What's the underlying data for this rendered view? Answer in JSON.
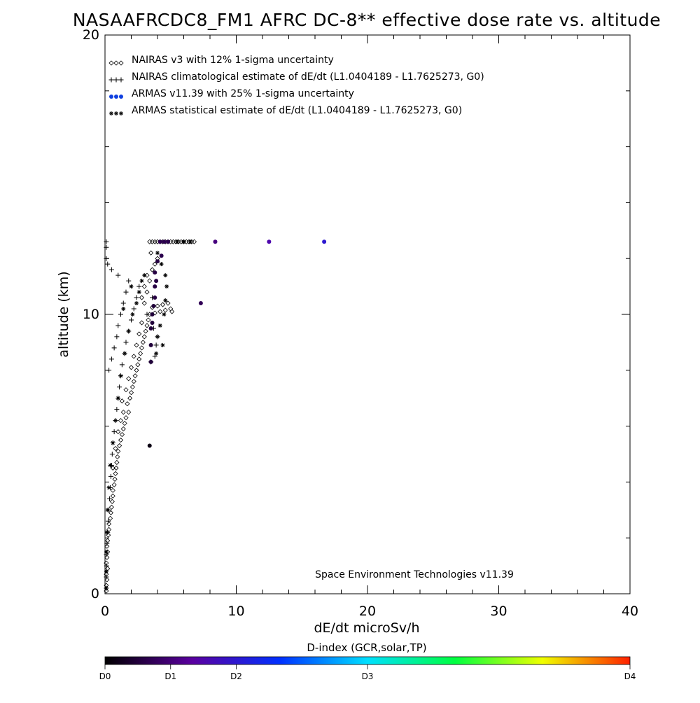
{
  "chart_data": {
    "type": "scatter",
    "title": "NASAAFRCDC8_FM1 AFRC DC-8** effective dose rate vs. altitude",
    "xlabel": "dE/dt microSv/h",
    "ylabel": "altitude (km)",
    "xlim": [
      0,
      40
    ],
    "ylim": [
      0,
      20
    ],
    "x_ticks": [
      "0",
      "10",
      "20",
      "30",
      "40"
    ],
    "y_ticks": [
      "0",
      "10",
      "20"
    ],
    "grid": false,
    "legend_position": "top-left",
    "credit": "Space Environment Technologies v11.39",
    "colorbar": {
      "title": "D-index (GCR,solar,TP)",
      "ticks": [
        {
          "label": "D0",
          "value": 0.0
        },
        {
          "label": "D1",
          "value": 0.125
        },
        {
          "label": "D2",
          "value": 0.25
        },
        {
          "label": "D3",
          "value": 0.5
        },
        {
          "label": "D4",
          "value": 1.0
        }
      ],
      "colors": [
        "#000000",
        "#5a00a0",
        "#0030ff",
        "#00e0ff",
        "#00ff40",
        "#f0ff00",
        "#ff2000"
      ]
    },
    "series": [
      {
        "name": "NAIRAS v3 with 12% 1-sigma uncertainty",
        "marker": "diamond",
        "color": "#000000",
        "points": [
          [
            0.1,
            0.1
          ],
          [
            0.1,
            0.3
          ],
          [
            0.15,
            0.5
          ],
          [
            0.1,
            0.7
          ],
          [
            0.2,
            0.9
          ],
          [
            0.1,
            1.1
          ],
          [
            0.15,
            1.3
          ],
          [
            0.2,
            1.5
          ],
          [
            0.15,
            1.7
          ],
          [
            0.2,
            1.9
          ],
          [
            0.25,
            2.1
          ],
          [
            0.3,
            2.3
          ],
          [
            0.3,
            2.5
          ],
          [
            0.4,
            2.7
          ],
          [
            0.45,
            2.9
          ],
          [
            0.5,
            3.1
          ],
          [
            0.55,
            3.3
          ],
          [
            0.6,
            3.5
          ],
          [
            0.6,
            3.7
          ],
          [
            0.7,
            3.9
          ],
          [
            0.75,
            4.1
          ],
          [
            0.8,
            4.3
          ],
          [
            0.85,
            4.5
          ],
          [
            0.9,
            4.7
          ],
          [
            0.95,
            4.9
          ],
          [
            0.6,
            4.5
          ],
          [
            1.0,
            5.1
          ],
          [
            1.1,
            5.3
          ],
          [
            0.8,
            5.2
          ],
          [
            1.2,
            5.5
          ],
          [
            1.3,
            5.7
          ],
          [
            1.0,
            5.8
          ],
          [
            1.4,
            5.9
          ],
          [
            1.5,
            6.1
          ],
          [
            1.2,
            6.2
          ],
          [
            1.6,
            6.3
          ],
          [
            1.4,
            6.5
          ],
          [
            1.8,
            6.5
          ],
          [
            1.7,
            6.8
          ],
          [
            1.3,
            6.9
          ],
          [
            1.9,
            7.0
          ],
          [
            2.0,
            7.2
          ],
          [
            1.6,
            7.3
          ],
          [
            2.1,
            7.4
          ],
          [
            2.2,
            7.6
          ],
          [
            1.8,
            7.7
          ],
          [
            2.3,
            7.8
          ],
          [
            2.4,
            8.0
          ],
          [
            2.0,
            8.1
          ],
          [
            2.5,
            8.2
          ],
          [
            2.6,
            8.4
          ],
          [
            2.2,
            8.5
          ],
          [
            2.7,
            8.6
          ],
          [
            2.8,
            8.8
          ],
          [
            2.4,
            8.9
          ],
          [
            2.9,
            9.0
          ],
          [
            3.0,
            9.2
          ],
          [
            2.6,
            9.3
          ],
          [
            3.1,
            9.4
          ],
          [
            3.2,
            9.6
          ],
          [
            2.8,
            9.7
          ],
          [
            3.3,
            9.8
          ],
          [
            3.4,
            10.0
          ],
          [
            3.8,
            10.05
          ],
          [
            4.2,
            10.1
          ],
          [
            4.6,
            10.15
          ],
          [
            5.0,
            10.2
          ],
          [
            3.6,
            10.25
          ],
          [
            4.0,
            10.3
          ],
          [
            4.4,
            10.35
          ],
          [
            4.8,
            10.4
          ],
          [
            5.1,
            10.1
          ],
          [
            3.0,
            10.4
          ],
          [
            2.8,
            10.6
          ],
          [
            3.2,
            10.8
          ],
          [
            3.0,
            11.0
          ],
          [
            3.4,
            11.2
          ],
          [
            3.2,
            11.4
          ],
          [
            3.6,
            11.6
          ],
          [
            3.8,
            11.8
          ],
          [
            4.0,
            12.0
          ],
          [
            3.5,
            12.2
          ],
          [
            3.4,
            12.6
          ],
          [
            3.6,
            12.6
          ],
          [
            3.8,
            12.6
          ],
          [
            4.0,
            12.6
          ],
          [
            4.2,
            12.6
          ],
          [
            4.4,
            12.6
          ],
          [
            4.6,
            12.6
          ],
          [
            4.8,
            12.6
          ],
          [
            5.0,
            12.6
          ],
          [
            5.2,
            12.6
          ],
          [
            5.4,
            12.6
          ],
          [
            5.6,
            12.6
          ],
          [
            5.8,
            12.6
          ],
          [
            6.0,
            12.6
          ],
          [
            6.2,
            12.6
          ],
          [
            6.4,
            12.6
          ],
          [
            6.6,
            12.6
          ],
          [
            6.8,
            12.6
          ]
        ]
      },
      {
        "name": "NAIRAS climatological estimate of dE/dt (L1.0404189 - L1.7625273, G0)",
        "marker": "plus",
        "color": "#000000",
        "points": [
          [
            0.1,
            0.2
          ],
          [
            0.1,
            0.6
          ],
          [
            0.12,
            1.0
          ],
          [
            0.1,
            1.4
          ],
          [
            0.15,
            1.8
          ],
          [
            0.2,
            2.2
          ],
          [
            0.25,
            2.6
          ],
          [
            0.3,
            3.0
          ],
          [
            0.35,
            3.4
          ],
          [
            0.4,
            3.8
          ],
          [
            0.45,
            4.2
          ],
          [
            0.5,
            4.6
          ],
          [
            0.55,
            5.0
          ],
          [
            0.6,
            5.4
          ],
          [
            0.7,
            5.8
          ],
          [
            0.8,
            6.2
          ],
          [
            0.9,
            6.6
          ],
          [
            1.0,
            7.0
          ],
          [
            1.1,
            7.4
          ],
          [
            1.2,
            7.8
          ],
          [
            0.3,
            8.0
          ],
          [
            1.3,
            8.2
          ],
          [
            0.5,
            8.4
          ],
          [
            1.5,
            8.6
          ],
          [
            0.7,
            8.8
          ],
          [
            1.6,
            9.0
          ],
          [
            0.9,
            9.2
          ],
          [
            1.8,
            9.4
          ],
          [
            1.0,
            9.6
          ],
          [
            2.0,
            9.8
          ],
          [
            1.2,
            10.0
          ],
          [
            2.2,
            10.2
          ],
          [
            1.4,
            10.4
          ],
          [
            2.4,
            10.6
          ],
          [
            1.6,
            10.8
          ],
          [
            2.6,
            11.0
          ],
          [
            1.8,
            11.2
          ],
          [
            1.0,
            11.4
          ],
          [
            0.5,
            11.6
          ],
          [
            0.2,
            11.8
          ],
          [
            0.1,
            12.0
          ],
          [
            0.1,
            12.4
          ],
          [
            0.1,
            12.6
          ],
          [
            3.5,
            8.3
          ],
          [
            3.8,
            8.5
          ],
          [
            3.9,
            8.9
          ],
          [
            4.0,
            9.2
          ],
          [
            3.7,
            9.5
          ],
          [
            3.2,
            10.0
          ],
          [
            3.6,
            10.6
          ]
        ]
      },
      {
        "name": "ARMAS v11.39 with 25% 1-sigma uncertainty",
        "marker": "dot",
        "color": "#1040e0",
        "points": [
          [
            3.4,
            5.3,
            0.02
          ],
          [
            3.5,
            8.3,
            0.06
          ],
          [
            3.5,
            8.9,
            0.06
          ],
          [
            3.5,
            9.5,
            0.06
          ],
          [
            3.6,
            9.7,
            0.06
          ],
          [
            3.6,
            10.0,
            0.06
          ],
          [
            3.7,
            10.3,
            0.06
          ],
          [
            3.8,
            10.6,
            0.07
          ],
          [
            3.8,
            11.0,
            0.07
          ],
          [
            3.9,
            11.2,
            0.07
          ],
          [
            3.8,
            11.5,
            0.07
          ],
          [
            4.0,
            11.9,
            0.07
          ],
          [
            4.3,
            12.1,
            0.08
          ],
          [
            4.2,
            12.6,
            0.08
          ],
          [
            4.5,
            12.6,
            0.08
          ],
          [
            4.8,
            12.6,
            0.08
          ],
          [
            7.3,
            10.4,
            0.09
          ],
          [
            8.4,
            12.6,
            0.13
          ],
          [
            12.5,
            12.6,
            0.19
          ],
          [
            16.7,
            12.6,
            0.25
          ]
        ]
      },
      {
        "name": "ARMAS statistical estimate of dE/dt (L1.0404189 - L1.7625273, G0)",
        "marker": "asterisk",
        "color": "#000000",
        "points": [
          [
            0.1,
            0.2
          ],
          [
            0.1,
            0.8
          ],
          [
            0.1,
            1.5
          ],
          [
            0.15,
            2.2
          ],
          [
            0.2,
            3.0
          ],
          [
            0.3,
            3.8
          ],
          [
            0.4,
            4.6
          ],
          [
            0.6,
            5.4
          ],
          [
            0.8,
            6.2
          ],
          [
            1.0,
            7.0
          ],
          [
            1.2,
            7.8
          ],
          [
            1.5,
            8.6
          ],
          [
            1.8,
            9.4
          ],
          [
            2.1,
            10.0
          ],
          [
            2.4,
            10.4
          ],
          [
            2.6,
            10.8
          ],
          [
            2.8,
            11.2
          ],
          [
            3.0,
            11.4
          ],
          [
            2.0,
            11.0
          ],
          [
            1.4,
            10.2
          ],
          [
            4.0,
            9.2
          ],
          [
            4.2,
            9.6
          ],
          [
            4.5,
            10.0
          ],
          [
            4.6,
            10.5
          ],
          [
            4.7,
            11.0
          ],
          [
            4.6,
            11.4
          ],
          [
            4.3,
            11.8
          ],
          [
            4.0,
            12.2
          ],
          [
            5.5,
            12.6
          ],
          [
            6.0,
            12.6
          ],
          [
            6.5,
            12.6
          ],
          [
            3.9,
            8.6
          ],
          [
            4.4,
            8.9
          ]
        ]
      }
    ]
  }
}
